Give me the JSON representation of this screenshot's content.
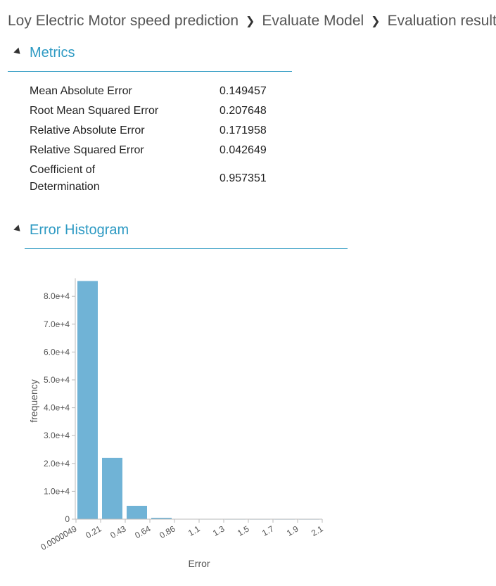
{
  "breadcrumb": {
    "items": [
      "Loy Electric Motor speed prediction",
      "Evaluate Model",
      "Evaluation results"
    ]
  },
  "metrics_section": {
    "title": "Metrics",
    "rows": [
      {
        "label": "Mean Absolute Error",
        "value": "0.149457"
      },
      {
        "label": "Root Mean Squared Error",
        "value": "0.207648"
      },
      {
        "label": "Relative Absolute Error",
        "value": "0.171958"
      },
      {
        "label": "Relative Squared Error",
        "value": "0.042649"
      },
      {
        "label": "Coefficient of Determination",
        "value": "0.957351"
      }
    ]
  },
  "histogram_section": {
    "title": "Error Histogram"
  },
  "colors": {
    "accent": "#2e9ac3",
    "bar": "#70b3d6",
    "axis": "#bbbbbb"
  },
  "chart_data": {
    "type": "bar",
    "xlabel": "Error",
    "ylabel": "frequency",
    "x_ticks": [
      "0.0000049",
      "0.21",
      "0.43",
      "0.64",
      "0.86",
      "1.1",
      "1.3",
      "1.5",
      "1.7",
      "1.9",
      "2.1"
    ],
    "y_ticks": [
      "0",
      "1.0e+4",
      "2.0e+4",
      "3.0e+4",
      "4.0e+4",
      "5.0e+4",
      "6.0e+4",
      "7.0e+4",
      "8.0e+4"
    ],
    "y_tick_values": [
      0,
      10000,
      20000,
      30000,
      40000,
      50000,
      60000,
      70000,
      80000
    ],
    "values": [
      85500,
      22000,
      4800,
      500,
      60,
      20,
      8,
      5,
      3,
      2
    ],
    "ylim": [
      0,
      86000
    ]
  }
}
